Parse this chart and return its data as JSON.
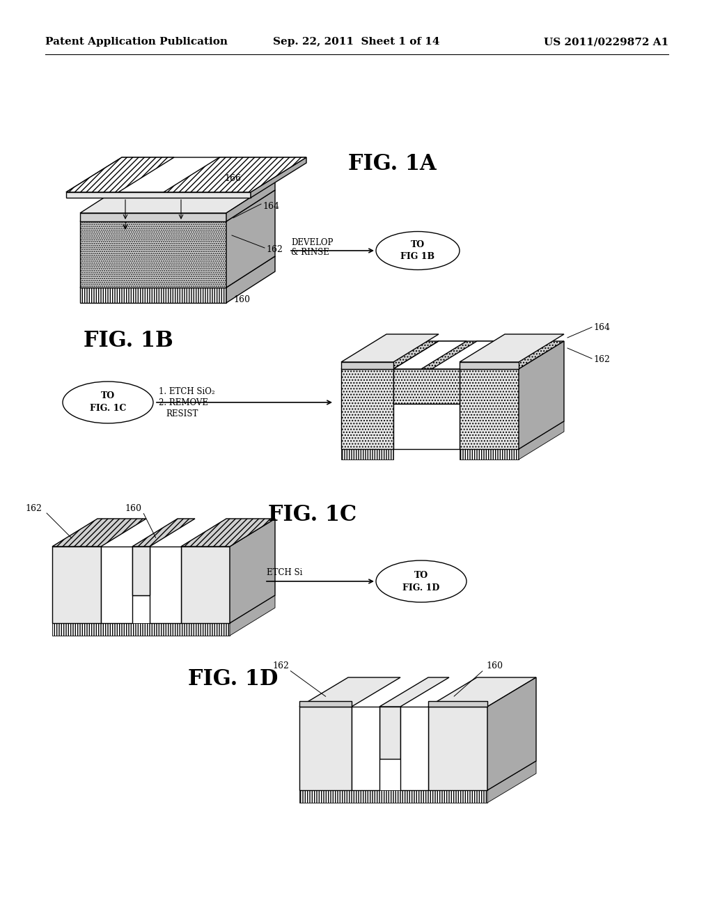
{
  "background_color": "#ffffff",
  "header_left": "Patent Application Publication",
  "header_center": "Sep. 22, 2011  Sheet 1 of 14",
  "header_right": "US 2011/0229872 A1",
  "lw": 1.0,
  "lw_thin": 0.6
}
